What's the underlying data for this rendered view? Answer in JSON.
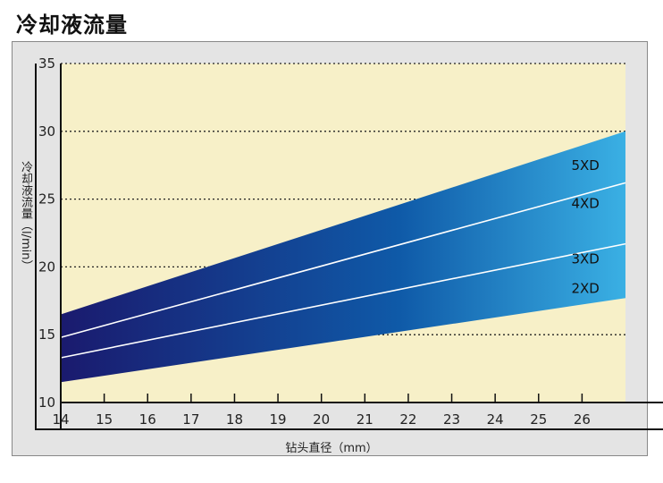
{
  "header": {
    "title": "冷却液流量"
  },
  "chart_data": {
    "type": "area",
    "title": "冷却液流量",
    "xlabel": "钻头直径（mm）",
    "ylabel": "冷却液流量（l/min）",
    "xlim": [
      14,
      27
    ],
    "ylim": [
      10,
      35
    ],
    "x_ticks": [
      14,
      15,
      16,
      17,
      18,
      19,
      20,
      21,
      22,
      23,
      24,
      25,
      26
    ],
    "y_ticks": [
      10,
      15,
      20,
      25,
      30,
      35
    ],
    "grid": "horizontal dotted",
    "band": {
      "upper": {
        "x": [
          14,
          27
        ],
        "y": [
          16.5,
          30
        ]
      },
      "lower": {
        "x": [
          14,
          27
        ],
        "y": [
          11.5,
          17.7
        ]
      }
    },
    "series": [
      {
        "name": "5XD",
        "x": [
          14,
          27
        ],
        "y": [
          16.5,
          30
        ]
      },
      {
        "name": "4XD",
        "x": [
          14,
          27
        ],
        "y": [
          14.8,
          26.2
        ]
      },
      {
        "name": "3XD",
        "x": [
          14,
          27
        ],
        "y": [
          13.3,
          21.7
        ]
      },
      {
        "name": "2XD",
        "x": [
          14,
          27
        ],
        "y": [
          11.5,
          17.7
        ]
      }
    ],
    "colors": {
      "background": "#f7f0c8",
      "band_start": "#1a1a6e",
      "band_mid": "#0f5aa8",
      "band_end": "#3ab0e4",
      "lines": "#ffffff"
    }
  }
}
